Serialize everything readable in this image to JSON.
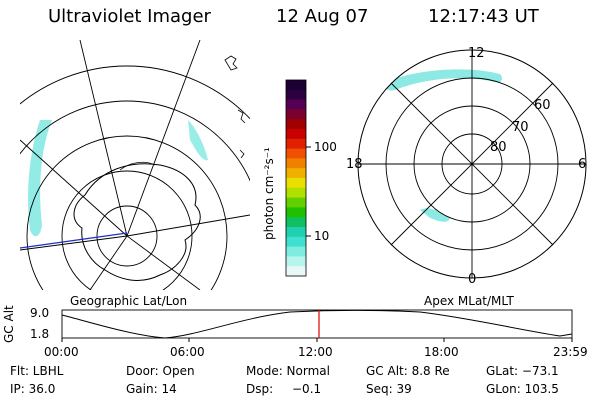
{
  "header": {
    "instrument": "Ultraviolet Imager",
    "date": "12 Aug 07",
    "time": "12:17:43 UT"
  },
  "colorbar": {
    "label": "photon cm⁻²s⁻¹",
    "ticks": [
      "100",
      "10"
    ],
    "colors": [
      "#1a0033",
      "#2a0040",
      "#550055",
      "#7a0030",
      "#a00000",
      "#c80000",
      "#e02000",
      "#f05000",
      "#f08000",
      "#f0b000",
      "#e8e000",
      "#b0e000",
      "#60d000",
      "#20c000",
      "#10c060",
      "#20d0b0",
      "#40e0d0",
      "#80ece0",
      "#b8f4ee",
      "#e8f8f6"
    ]
  },
  "left_panel": {
    "caption": "Geographic Lat/Lon"
  },
  "right_panel": {
    "caption": "Apex MLat/MLT",
    "mlt_labels": [
      "12",
      "18",
      "6",
      "0"
    ],
    "lat_labels": [
      "60",
      "70",
      "80"
    ]
  },
  "altitude_plot": {
    "ylabel": "GC Alt",
    "yticks": [
      "9.0",
      "1.8"
    ],
    "xticks": [
      "00:00",
      "06:00",
      "12:00",
      "18:00",
      "23:59"
    ]
  },
  "info": {
    "filter": "Flt: LBHL",
    "ip": "IP: 36.0",
    "door": "Door: Open",
    "gain": "Gain: 14",
    "mode": "Mode: Normal",
    "dsp": "Dsp:",
    "dsp_value": "−0.1",
    "gc_alt": "GC Alt: 8.8 Re",
    "seq": "Seq: 39",
    "glat": "GLat: −73.1",
    "glon": "GLon: 103.5"
  }
}
